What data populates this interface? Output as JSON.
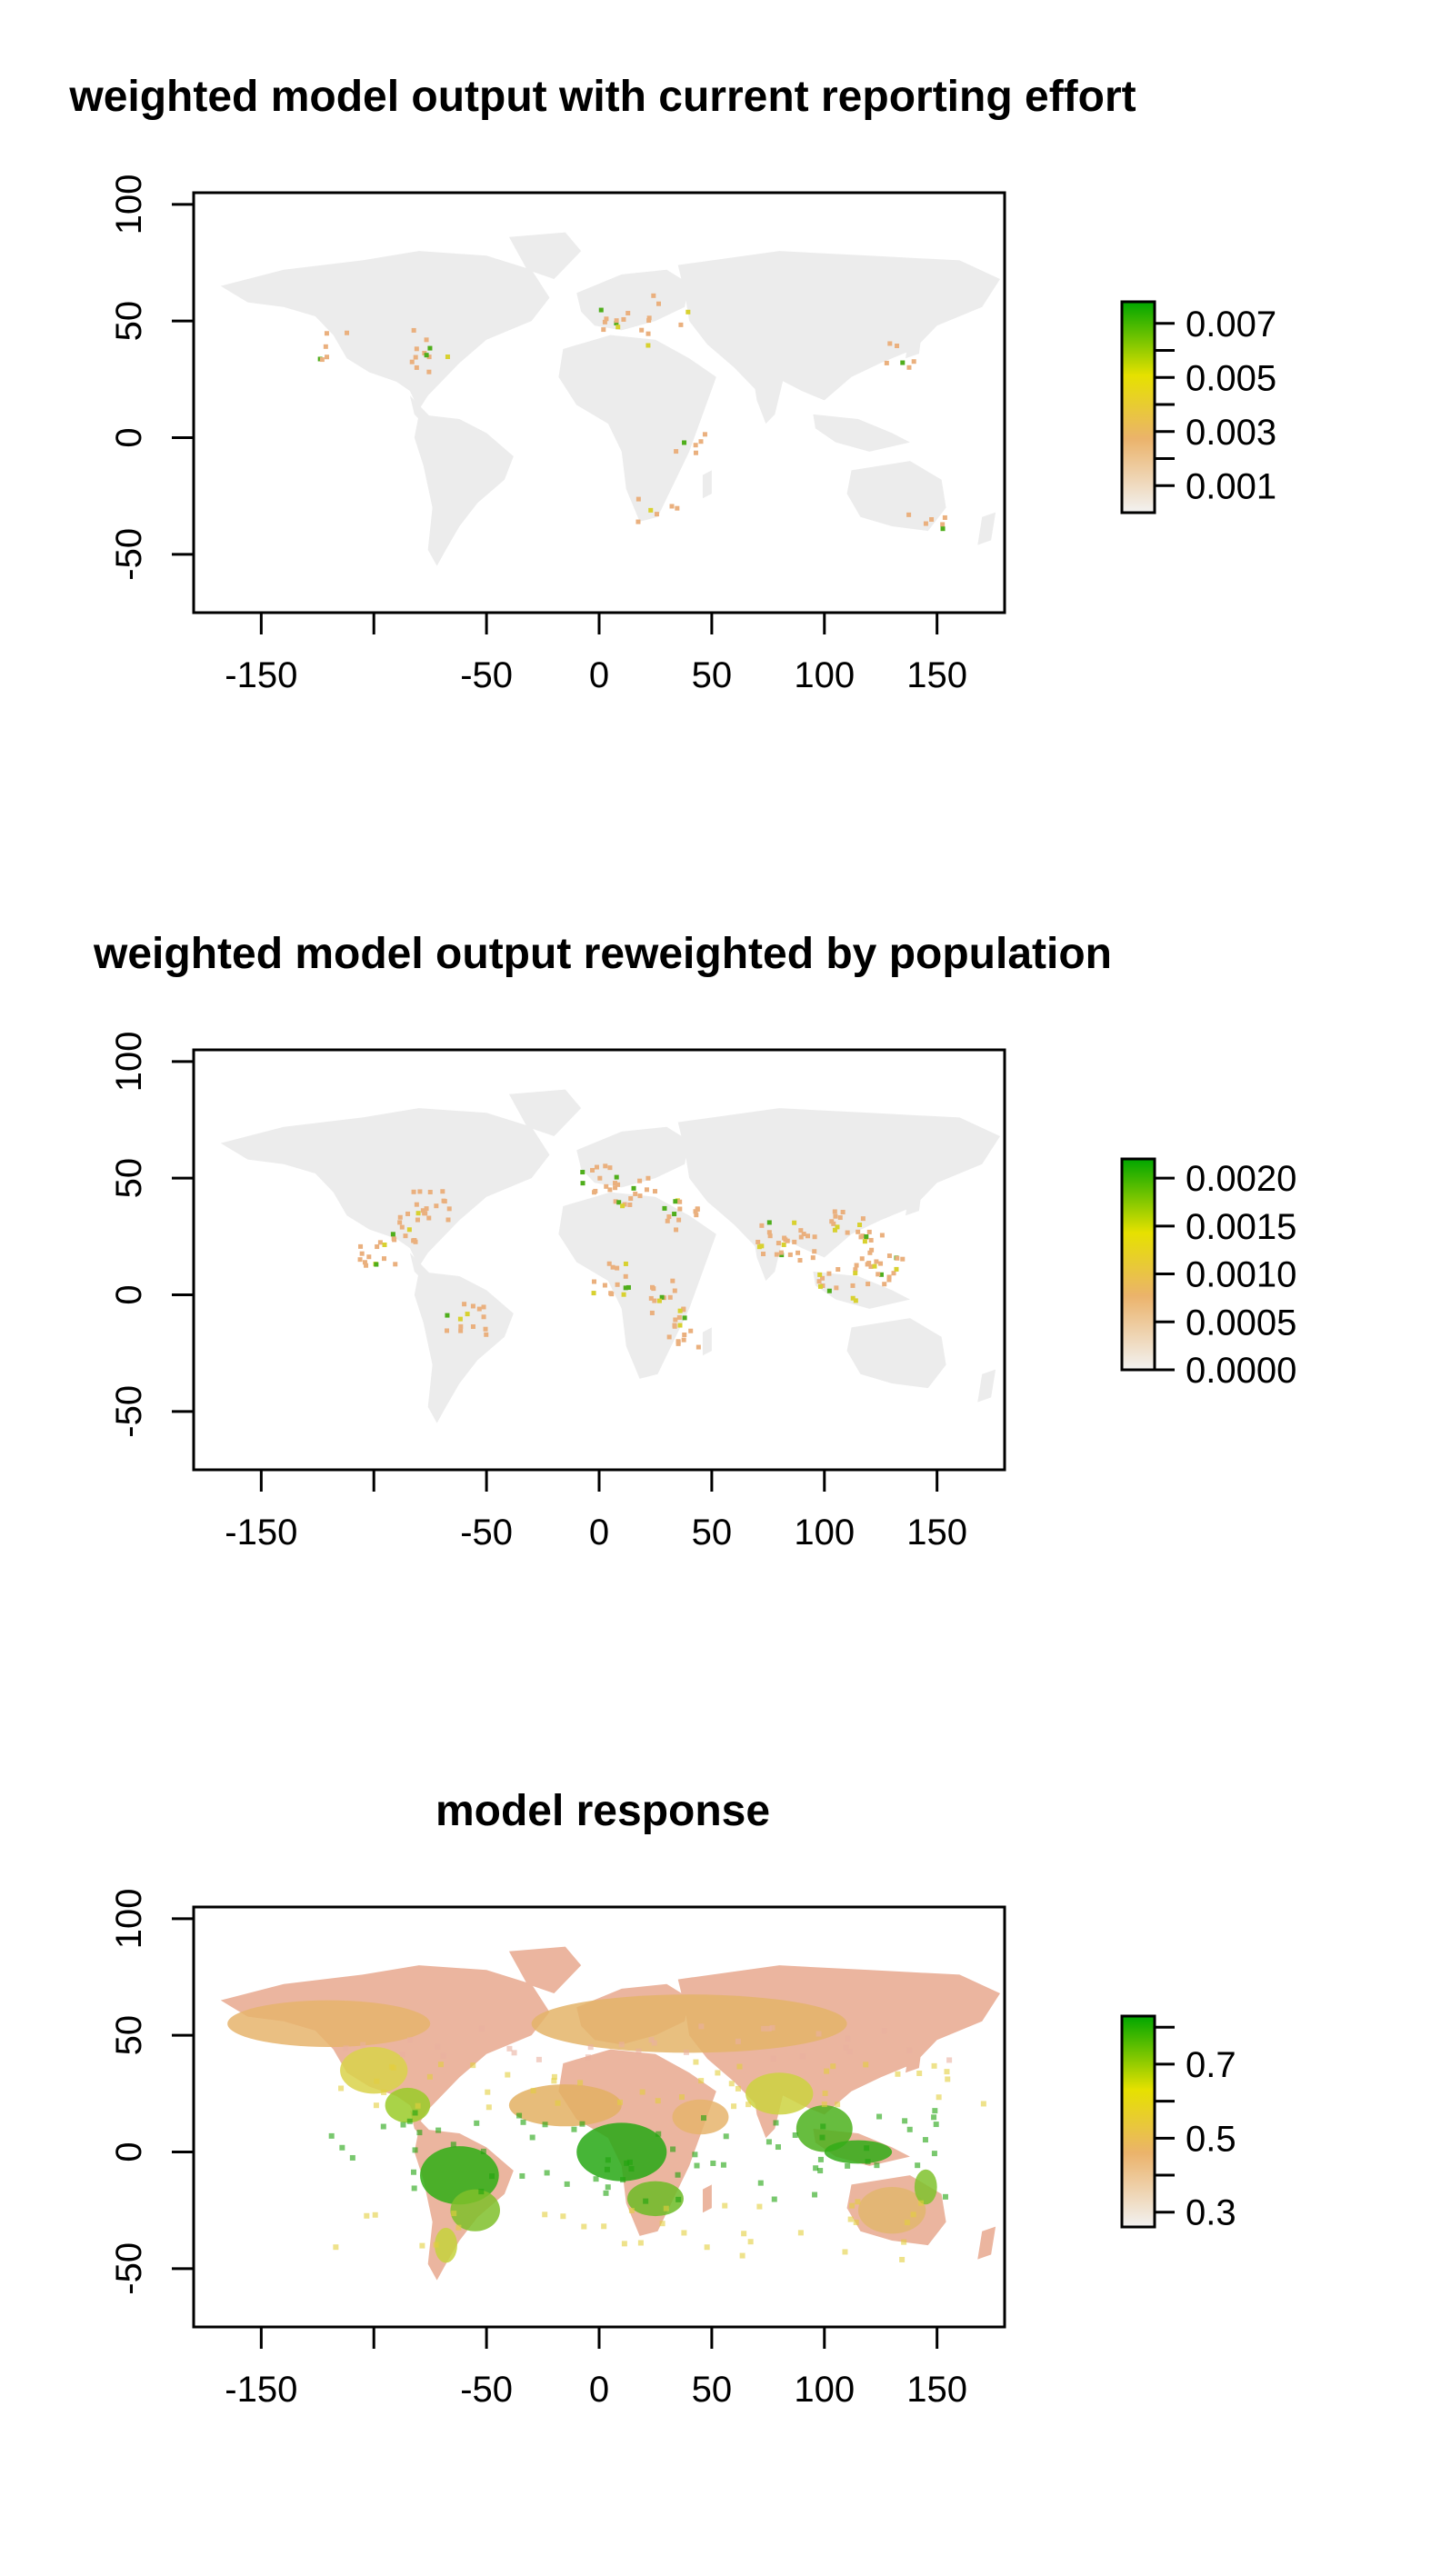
{
  "chart_data": [
    {
      "type": "heatmap",
      "title": "weighted model output with current reporting effort",
      "xlabel": "",
      "ylabel": "",
      "xlim": [
        -180,
        180
      ],
      "ylim": [
        -75,
        105
      ],
      "x_ticks": [
        -150,
        -100,
        -50,
        0,
        50,
        100,
        150
      ],
      "x_tick_labels": [
        "-150",
        "",
        "-50",
        "0",
        "50",
        "100",
        "150"
      ],
      "y_ticks": [
        100,
        50,
        0,
        -50
      ],
      "y_tick_labels": [
        "100",
        "50",
        "0",
        "-50"
      ],
      "legend": {
        "position": "right",
        "range": [
          0,
          0.0078
        ],
        "ticks": [
          0.001,
          0.002,
          0.003,
          0.004,
          0.005,
          0.006,
          0.007
        ],
        "tick_labels": [
          "0.001",
          "0.003",
          "0.005",
          "0.007"
        ],
        "labeled_ticks": [
          0.001,
          0.003,
          0.005,
          0.007
        ],
        "colors": [
          "#f2f2f2",
          "#ebb36b",
          "#e6e100",
          "#00a600"
        ]
      },
      "map_style": "sparse-hotspots"
    },
    {
      "type": "heatmap",
      "title": "weighted model output reweighted by population",
      "xlabel": "",
      "ylabel": "",
      "xlim": [
        -180,
        180
      ],
      "ylim": [
        -75,
        105
      ],
      "x_ticks": [
        -150,
        -100,
        -50,
        0,
        50,
        100,
        150
      ],
      "x_tick_labels": [
        "-150",
        "",
        "-50",
        "0",
        "50",
        "100",
        "150"
      ],
      "y_ticks": [
        100,
        50,
        0,
        -50
      ],
      "y_tick_labels": [
        "100",
        "50",
        "0",
        "-50"
      ],
      "legend": {
        "position": "right",
        "range": [
          0,
          0.0022
        ],
        "ticks": [
          0.0,
          0.0005,
          0.001,
          0.0015,
          0.002
        ],
        "tick_labels": [
          "0.0000",
          "0.0005",
          "0.0010",
          "0.0015",
          "0.0020"
        ],
        "labeled_ticks": [
          0.0,
          0.0005,
          0.001,
          0.0015,
          0.002
        ],
        "colors": [
          "#f2f2f2",
          "#ebb36b",
          "#e6e100",
          "#00a600"
        ]
      },
      "map_style": "population-hotspots"
    },
    {
      "type": "heatmap",
      "title": "model response",
      "xlabel": "",
      "ylabel": "",
      "xlim": [
        -180,
        180
      ],
      "ylim": [
        -75,
        105
      ],
      "x_ticks": [
        -150,
        -100,
        -50,
        0,
        50,
        100,
        150
      ],
      "x_tick_labels": [
        "-150",
        "",
        "-50",
        "0",
        "50",
        "100",
        "150"
      ],
      "y_ticks": [
        100,
        50,
        0,
        -50
      ],
      "y_tick_labels": [
        "100",
        "50",
        "0",
        "-50"
      ],
      "legend": {
        "position": "right",
        "range": [
          0.26,
          0.83
        ],
        "ticks": [
          0.3,
          0.4,
          0.5,
          0.6,
          0.7,
          0.8
        ],
        "tick_labels": [
          "0.3",
          "0.5",
          "0.7"
        ],
        "labeled_ticks": [
          0.3,
          0.5,
          0.7
        ],
        "colors": [
          "#f2f2f2",
          "#ebb36b",
          "#e6e100",
          "#00a600"
        ]
      },
      "map_style": "full-response"
    }
  ]
}
